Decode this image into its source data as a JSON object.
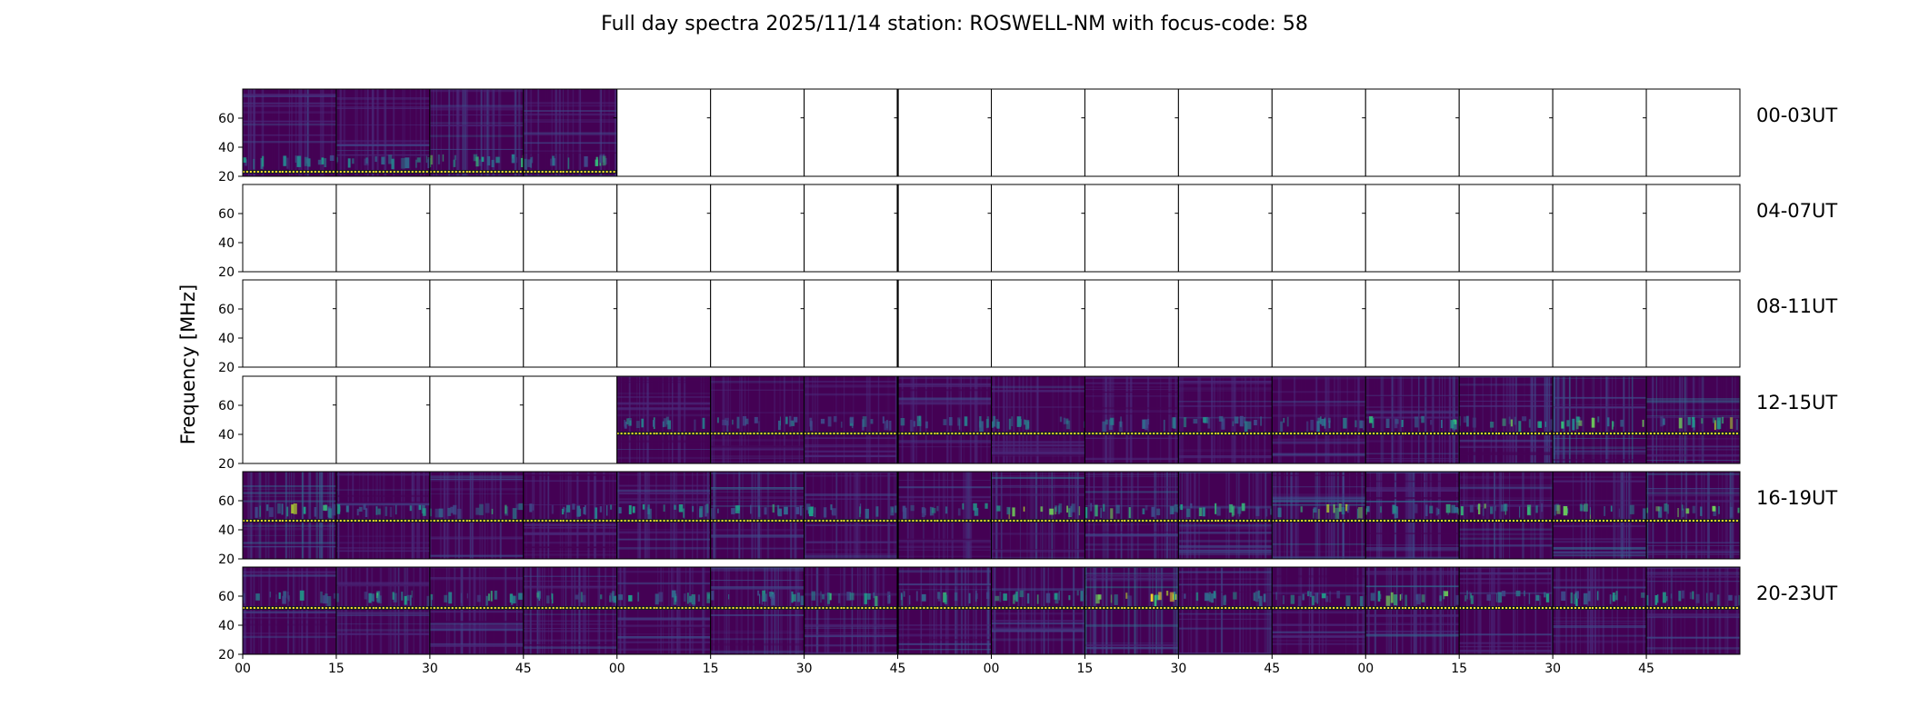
{
  "chart_data": {
    "type": "heatmap",
    "title": "Full day spectra 2025/11/14 station: ROSWELL-NM with focus-code: 58",
    "ylabel": "Frequency [MHz]",
    "xlabel": "",
    "yticks": [
      "20",
      "40",
      "60"
    ],
    "ylim": [
      20,
      80
    ],
    "xticks": [
      "00",
      "15",
      "30",
      "45",
      "00",
      "15",
      "30",
      "45",
      "00",
      "15",
      "30",
      "45",
      "00",
      "15",
      "30",
      "45"
    ],
    "rows": [
      {
        "label": "00-03UT",
        "panels": [
          {
            "data": true,
            "intensity": 0.3
          },
          {
            "data": true,
            "intensity": 0.28
          },
          {
            "data": true,
            "intensity": 0.45
          },
          {
            "data": true,
            "intensity": 0.35
          },
          {
            "data": false
          },
          {
            "data": false
          },
          {
            "data": false
          },
          {
            "data": false
          },
          {
            "data": false
          },
          {
            "data": false
          },
          {
            "data": false
          },
          {
            "data": false
          },
          {
            "data": false
          },
          {
            "data": false
          },
          {
            "data": false
          },
          {
            "data": false
          }
        ]
      },
      {
        "label": "04-07UT",
        "panels": [
          {
            "data": false
          },
          {
            "data": false
          },
          {
            "data": false
          },
          {
            "data": false
          },
          {
            "data": false
          },
          {
            "data": false
          },
          {
            "data": false
          },
          {
            "data": false
          },
          {
            "data": false
          },
          {
            "data": false
          },
          {
            "data": false
          },
          {
            "data": false
          },
          {
            "data": false
          },
          {
            "data": false
          },
          {
            "data": false
          },
          {
            "data": false
          }
        ]
      },
      {
        "label": "08-11UT",
        "panels": [
          {
            "data": false
          },
          {
            "data": false
          },
          {
            "data": false
          },
          {
            "data": false
          },
          {
            "data": false
          },
          {
            "data": false
          },
          {
            "data": false
          },
          {
            "data": false
          },
          {
            "data": false
          },
          {
            "data": false
          },
          {
            "data": false
          },
          {
            "data": false
          },
          {
            "data": false
          },
          {
            "data": false
          },
          {
            "data": false
          },
          {
            "data": false
          }
        ]
      },
      {
        "label": "12-15UT",
        "panels": [
          {
            "data": false
          },
          {
            "data": false
          },
          {
            "data": false
          },
          {
            "data": false
          },
          {
            "data": true,
            "intensity": 0.25
          },
          {
            "data": true,
            "intensity": 0.22
          },
          {
            "data": true,
            "intensity": 0.2
          },
          {
            "data": true,
            "intensity": 0.24
          },
          {
            "data": true,
            "intensity": 0.22
          },
          {
            "data": true,
            "intensity": 0.2
          },
          {
            "data": true,
            "intensity": 0.26
          },
          {
            "data": true,
            "intensity": 0.25
          },
          {
            "data": true,
            "intensity": 0.35
          },
          {
            "data": true,
            "intensity": 0.42
          },
          {
            "data": true,
            "intensity": 0.5
          },
          {
            "data": true,
            "intensity": 0.55
          }
        ]
      },
      {
        "label": "16-19UT",
        "panels": [
          {
            "data": true,
            "intensity": 0.55
          },
          {
            "data": true,
            "intensity": 0.3
          },
          {
            "data": true,
            "intensity": 0.35
          },
          {
            "data": true,
            "intensity": 0.28
          },
          {
            "data": true,
            "intensity": 0.3
          },
          {
            "data": true,
            "intensity": 0.45
          },
          {
            "data": true,
            "intensity": 0.32
          },
          {
            "data": true,
            "intensity": 0.28
          },
          {
            "data": true,
            "intensity": 0.5
          },
          {
            "data": true,
            "intensity": 0.4
          },
          {
            "data": true,
            "intensity": 0.35
          },
          {
            "data": true,
            "intensity": 0.48
          },
          {
            "data": true,
            "intensity": 0.38
          },
          {
            "data": true,
            "intensity": 0.4
          },
          {
            "data": true,
            "intensity": 0.45
          },
          {
            "data": true,
            "intensity": 0.5
          }
        ]
      },
      {
        "label": "20-23UT",
        "panels": [
          {
            "data": true,
            "intensity": 0.3
          },
          {
            "data": true,
            "intensity": 0.32
          },
          {
            "data": true,
            "intensity": 0.4
          },
          {
            "data": true,
            "intensity": 0.38
          },
          {
            "data": true,
            "intensity": 0.3
          },
          {
            "data": true,
            "intensity": 0.32
          },
          {
            "data": true,
            "intensity": 0.35
          },
          {
            "data": true,
            "intensity": 0.4
          },
          {
            "data": true,
            "intensity": 0.42
          },
          {
            "data": true,
            "intensity": 0.7
          },
          {
            "data": true,
            "intensity": 0.3
          },
          {
            "data": true,
            "intensity": 0.28
          },
          {
            "data": true,
            "intensity": 0.45
          },
          {
            "data": true,
            "intensity": 0.28
          },
          {
            "data": true,
            "intensity": 0.3
          },
          {
            "data": true,
            "intensity": 0.32
          }
        ]
      }
    ],
    "colormap": [
      "#440154",
      "#482878",
      "#3e4989",
      "#31688e",
      "#26828e",
      "#1f9e89",
      "#35b779",
      "#6ece58",
      "#b5de2b",
      "#fde725"
    ],
    "grid": false
  }
}
